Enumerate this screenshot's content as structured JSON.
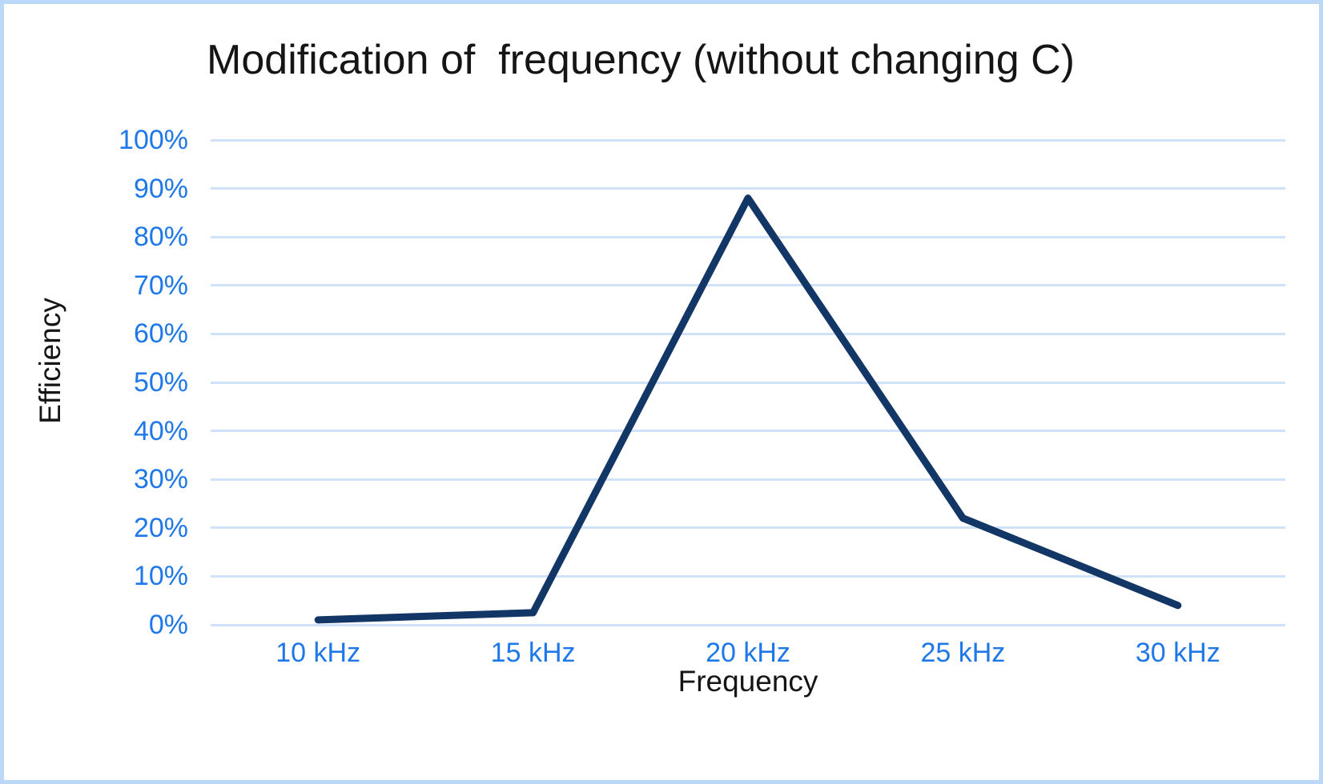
{
  "window": {
    "background_color": "#ffffff",
    "border_color": "#bcd8f8"
  },
  "chart_data": {
    "type": "line",
    "title": "Modification of  frequency (without changing C)",
    "categories": [
      "10 kHz",
      "15 kHz",
      "20 kHz",
      "25 kHz",
      "30 kHz"
    ],
    "series": [
      {
        "name": "Efficiency",
        "values": [
          1,
          2.5,
          88,
          22,
          4
        ]
      }
    ],
    "xlabel": "Frequency",
    "ylabel": "Efficiency",
    "ylim": [
      0,
      100
    ],
    "ytick_step": 10,
    "ytick_labels": [
      "0%",
      "10%",
      "20%",
      "30%",
      "40%",
      "50%",
      "60%",
      "70%",
      "80%",
      "90%",
      "100%"
    ],
    "grid": "horizontal-only",
    "legend": "none",
    "colors": {
      "line": "#123665",
      "tick_label": "#1e78e8",
      "gridline": "#cfe2f9",
      "axis_title": "#151515",
      "title": "#151515"
    },
    "line_width": 9
  }
}
